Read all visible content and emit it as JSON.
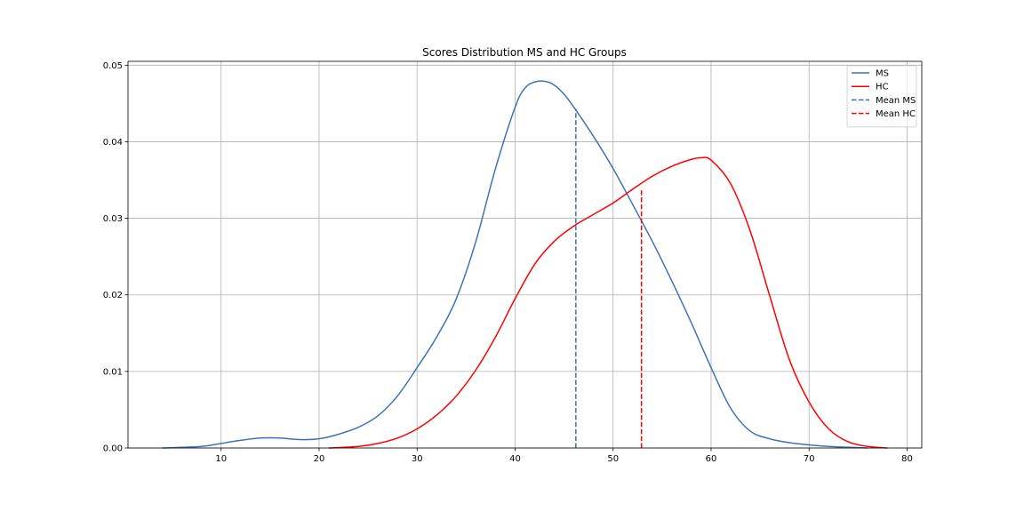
{
  "chart_data": {
    "type": "line",
    "title": "Scores Distribution MS and HC Groups",
    "xlabel": "",
    "ylabel": "",
    "xlim": [
      0.5,
      81.5
    ],
    "ylim": [
      0,
      0.0505
    ],
    "xticks": [
      10,
      20,
      30,
      40,
      50,
      60,
      70,
      80
    ],
    "xtick_labels": [
      "10",
      "20",
      "30",
      "40",
      "50",
      "60",
      "70",
      "80"
    ],
    "yticks": [
      0,
      0.01,
      0.02,
      0.03,
      0.04,
      0.05
    ],
    "ytick_labels": [
      "0.00",
      "0.01",
      "0.02",
      "0.03",
      "0.04",
      "0.05"
    ],
    "grid": true,
    "legend_position": "top-right",
    "series": [
      {
        "name": "MS",
        "color": "#3f72b5",
        "style": "solid",
        "x": [
          4,
          8,
          10,
          12,
          14,
          16,
          18,
          20,
          22,
          24,
          26,
          28,
          30,
          32,
          34,
          36,
          38,
          40,
          41,
          42,
          43,
          44,
          45,
          46,
          48,
          50,
          52,
          54,
          56,
          58,
          60,
          62,
          64,
          66,
          68,
          70,
          72,
          74,
          76
        ],
        "y": [
          0.0,
          0.0002,
          0.0006,
          0.001,
          0.0013,
          0.0013,
          0.0011,
          0.0012,
          0.0018,
          0.0027,
          0.0042,
          0.0068,
          0.0105,
          0.0145,
          0.0195,
          0.027,
          0.0365,
          0.0445,
          0.047,
          0.0478,
          0.0479,
          0.0474,
          0.0462,
          0.0445,
          0.0407,
          0.0365,
          0.0318,
          0.027,
          0.0218,
          0.0163,
          0.0105,
          0.0052,
          0.0022,
          0.0012,
          0.0007,
          0.0004,
          0.0002,
          0.0001,
          0.0
        ]
      },
      {
        "name": "HC",
        "color": "#ff0000",
        "style": "solid",
        "x": [
          21,
          24,
          26,
          28,
          30,
          32,
          34,
          36,
          38,
          40,
          42,
          44,
          46,
          48,
          50,
          52,
          54,
          56,
          58,
          59,
          60,
          62,
          64,
          66,
          68,
          70,
          72,
          74,
          76,
          78
        ],
        "y": [
          0.0,
          0.0002,
          0.0006,
          0.0013,
          0.0025,
          0.0043,
          0.0068,
          0.0102,
          0.0145,
          0.0195,
          0.024,
          0.027,
          0.029,
          0.0305,
          0.032,
          0.0338,
          0.0355,
          0.0368,
          0.0377,
          0.0379,
          0.0376,
          0.0345,
          0.0283,
          0.0198,
          0.0115,
          0.006,
          0.0025,
          0.0008,
          0.0002,
          0.0
        ]
      },
      {
        "name": "Mean MS",
        "color": "#3f72b5",
        "style": "dashed",
        "x": [
          46.2,
          46.2
        ],
        "y": [
          0.0,
          0.0443
        ]
      },
      {
        "name": "Mean HC",
        "color": "#ff0000",
        "style": "dashed",
        "x": [
          52.9,
          52.9
        ],
        "y": [
          0.0,
          0.0339
        ]
      }
    ]
  }
}
